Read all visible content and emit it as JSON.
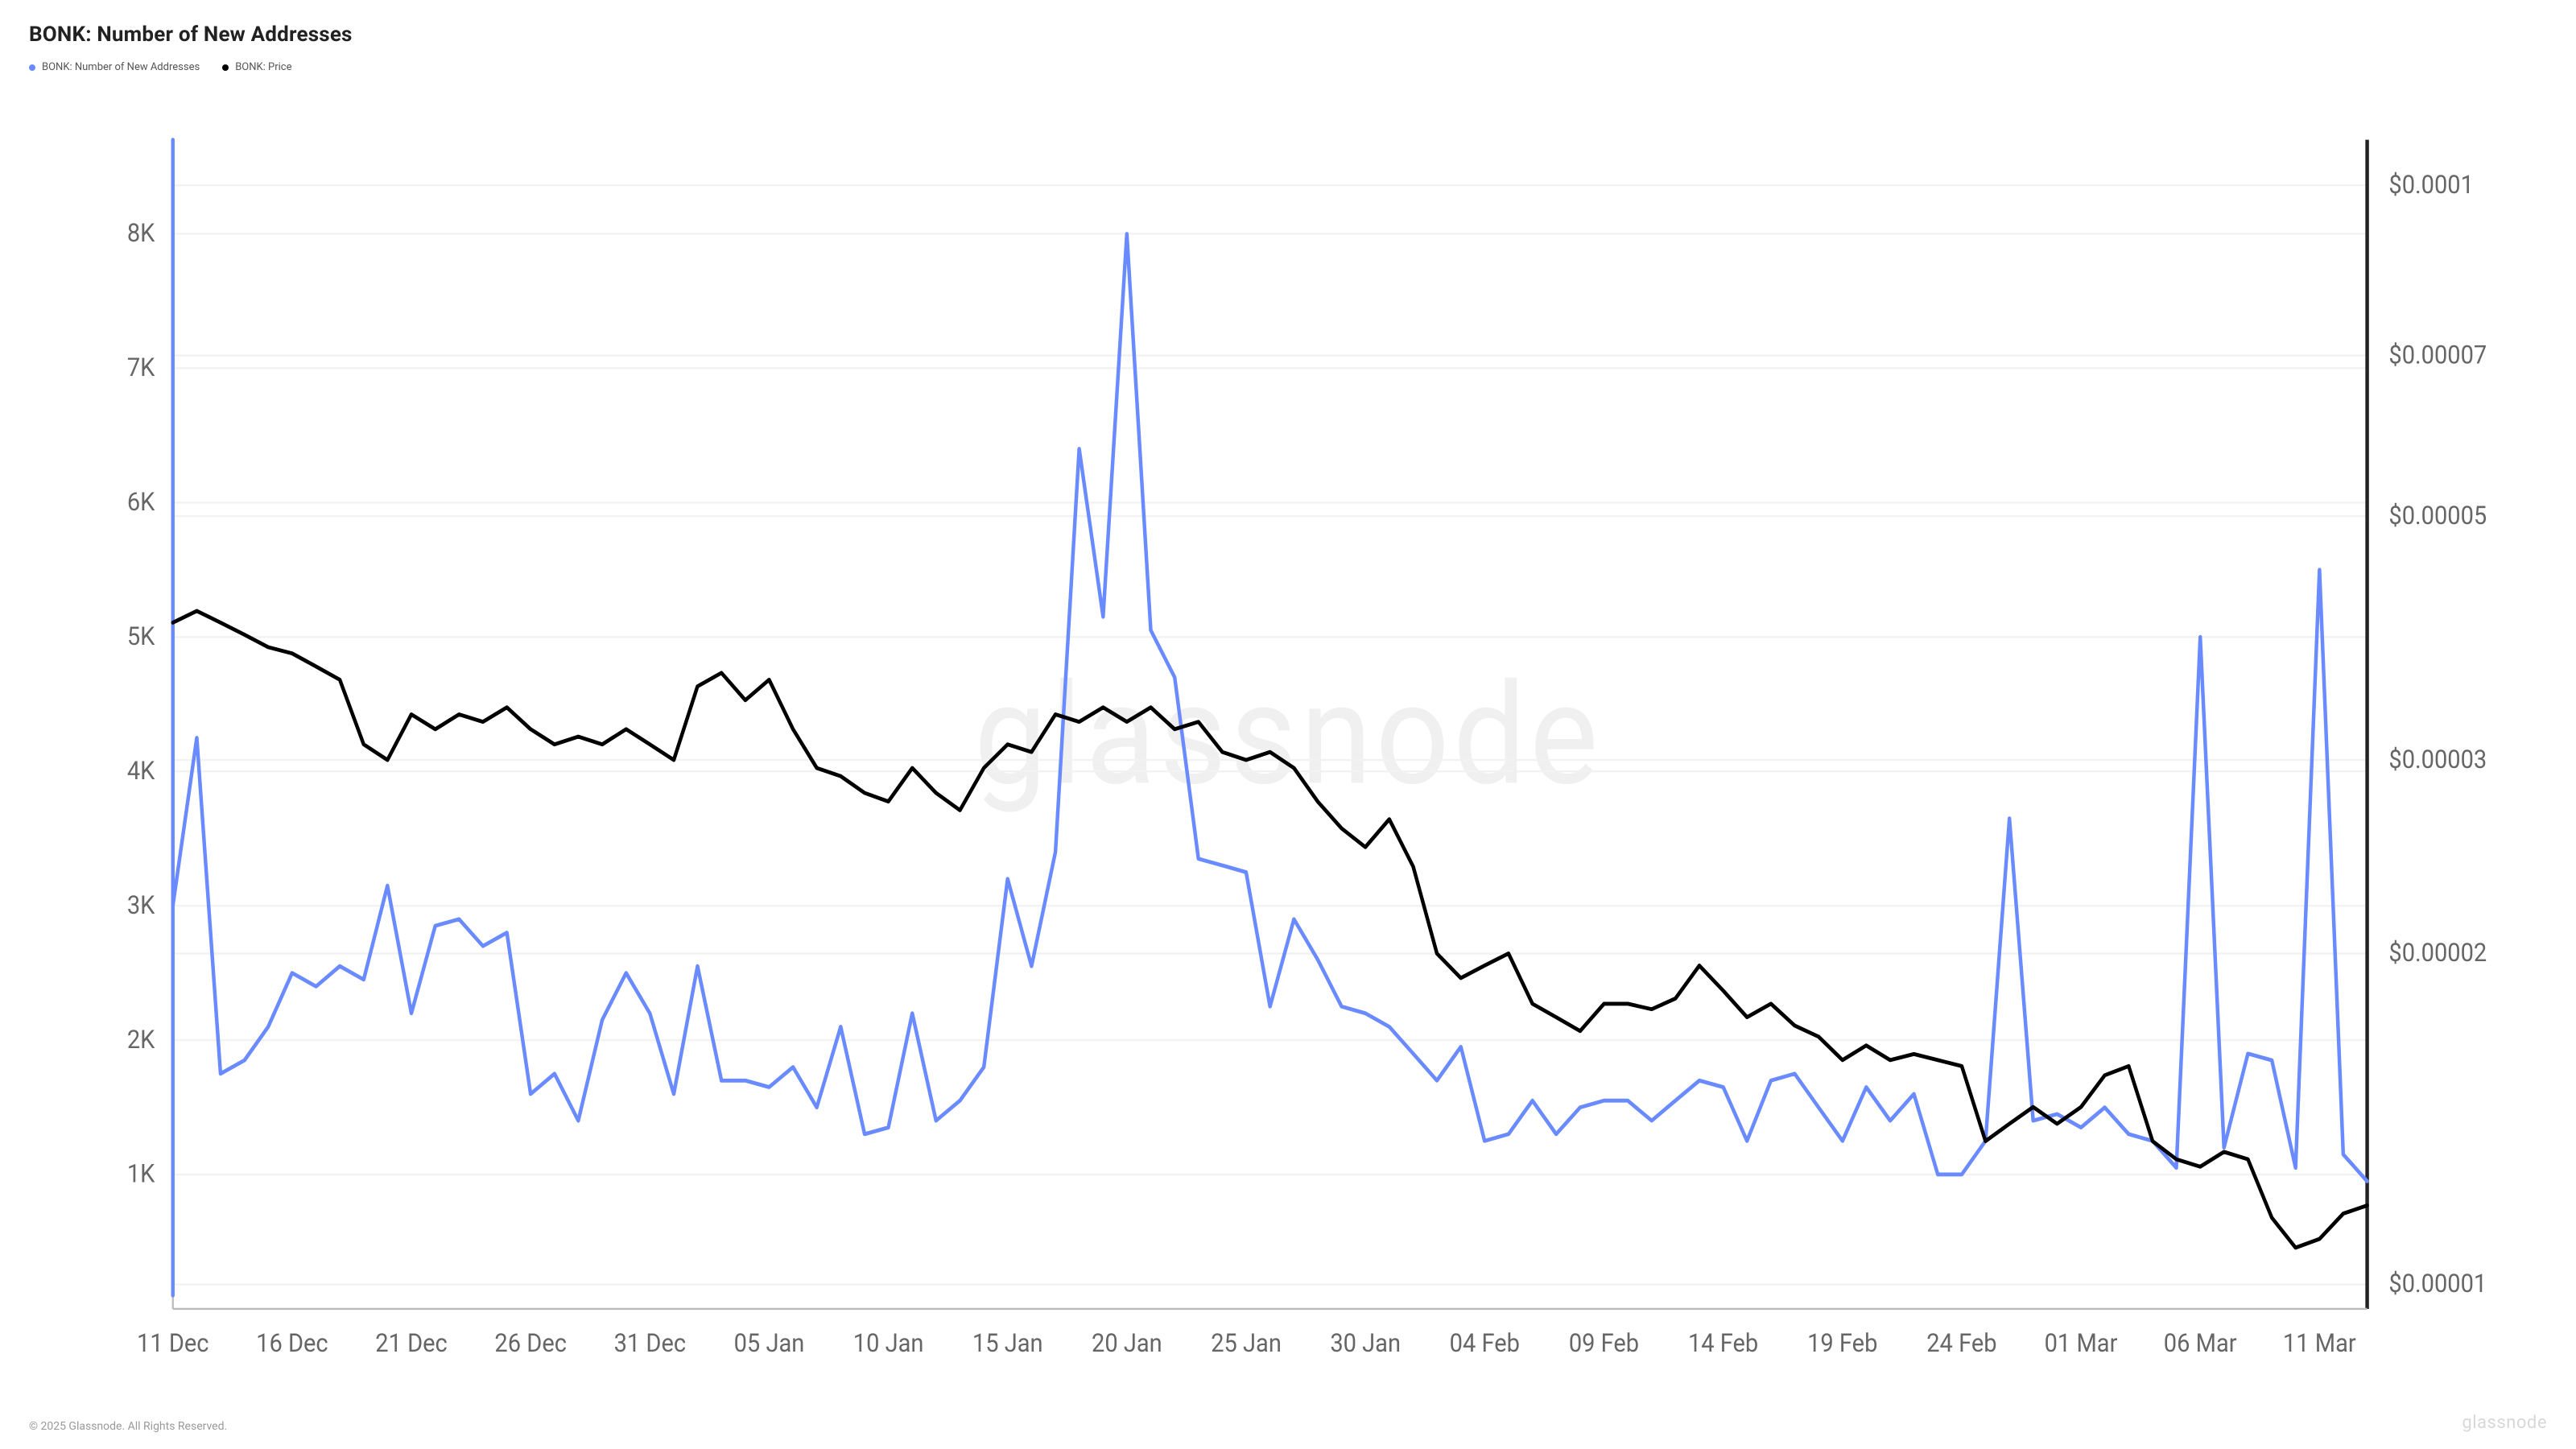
{
  "title": "BONK: Number of New Addresses",
  "legend": [
    {
      "label": "BONK: Number of New Addresses",
      "color": "#6a8bff"
    },
    {
      "label": "BONK: Price",
      "color": "#000000"
    }
  ],
  "chart": {
    "type": "line",
    "background_color": "#ffffff",
    "grid_color": "#f2f2f2",
    "axis_color": "#bbbbbb",
    "tick_font_size": 13,
    "title_font_size": 26,
    "watermark_text": "glassnode",
    "watermark_color": "#f0f0f0",
    "x": {
      "categories": [
        "11 Dec",
        "12 Dec",
        "13 Dec",
        "14 Dec",
        "15 Dec",
        "16 Dec",
        "17 Dec",
        "18 Dec",
        "19 Dec",
        "20 Dec",
        "21 Dec",
        "22 Dec",
        "23 Dec",
        "24 Dec",
        "25 Dec",
        "26 Dec",
        "27 Dec",
        "28 Dec",
        "29 Dec",
        "30 Dec",
        "31 Dec",
        "01 Jan",
        "02 Jan",
        "03 Jan",
        "04 Jan",
        "05 Jan",
        "06 Jan",
        "07 Jan",
        "08 Jan",
        "09 Jan",
        "10 Jan",
        "11 Jan",
        "12 Jan",
        "13 Jan",
        "14 Jan",
        "15 Jan",
        "16 Jan",
        "17 Jan",
        "18 Jan",
        "19 Jan",
        "20 Jan",
        "21 Jan",
        "22 Jan",
        "23 Jan",
        "24 Jan",
        "25 Jan",
        "26 Jan",
        "27 Jan",
        "28 Jan",
        "29 Jan",
        "30 Jan",
        "31 Jan",
        "01 Feb",
        "02 Feb",
        "03 Feb",
        "04 Feb",
        "05 Feb",
        "06 Feb",
        "07 Feb",
        "08 Feb",
        "09 Feb",
        "10 Feb",
        "11 Feb",
        "12 Feb",
        "13 Feb",
        "14 Feb",
        "15 Feb",
        "16 Feb",
        "17 Feb",
        "18 Feb",
        "19 Feb",
        "20 Feb",
        "21 Feb",
        "22 Feb",
        "23 Feb",
        "24 Feb",
        "25 Feb",
        "26 Feb",
        "27 Feb",
        "28 Feb",
        "01 Mar",
        "02 Mar",
        "03 Mar",
        "04 Mar",
        "05 Mar",
        "06 Mar",
        "07 Mar",
        "08 Mar",
        "09 Mar",
        "10 Mar",
        "11 Mar",
        "12 Mar",
        "13 Mar"
      ],
      "tick_labels": [
        "11 Dec",
        "16 Dec",
        "21 Dec",
        "26 Dec",
        "31 Dec",
        "05 Jan",
        "10 Jan",
        "15 Jan",
        "20 Jan",
        "25 Jan",
        "30 Jan",
        "04 Feb",
        "09 Feb",
        "14 Feb",
        "19 Feb",
        "24 Feb",
        "01 Mar",
        "06 Mar",
        "11 Mar"
      ],
      "tick_indices": [
        0,
        5,
        10,
        15,
        20,
        25,
        30,
        35,
        40,
        45,
        50,
        55,
        60,
        65,
        70,
        75,
        80,
        85,
        90
      ]
    },
    "y_left": {
      "scale": "linear",
      "min": 0,
      "max": 8700,
      "ticks": [
        1000,
        2000,
        3000,
        4000,
        5000,
        6000,
        7000,
        8000
      ],
      "tick_labels": [
        "1K",
        "2K",
        "3K",
        "4K",
        "5K",
        "6K",
        "7K",
        "8K"
      ],
      "series_color": "#6a8bff",
      "line_width": 2,
      "values": [
        3000,
        4250,
        1750,
        1850,
        2100,
        2500,
        2400,
        2550,
        2450,
        3150,
        2200,
        2850,
        2900,
        2700,
        2800,
        1600,
        1750,
        1400,
        2150,
        2500,
        2200,
        1600,
        2550,
        1700,
        1700,
        1650,
        1800,
        1500,
        2100,
        1300,
        1350,
        2200,
        1400,
        1550,
        1800,
        3200,
        2550,
        3400,
        6400,
        5150,
        8000,
        5050,
        4700,
        3350,
        3300,
        3250,
        2250,
        2900,
        2600,
        2250,
        2200,
        2100,
        1900,
        1700,
        1950,
        1250,
        1300,
        1550,
        1300,
        1500,
        1550,
        1550,
        1400,
        1550,
        1700,
        1650,
        1250,
        1700,
        1750,
        1500,
        1250,
        1650,
        1400,
        1600,
        1000,
        1000,
        1250,
        3650,
        1400,
        1450,
        1350,
        1500,
        1300,
        1250,
        1050,
        5000,
        1200,
        1900,
        1850,
        1050,
        5500,
        1150,
        950
      ]
    },
    "y_right": {
      "scale": "log",
      "min": 9.5e-06,
      "max": 0.00011,
      "ticks": [
        1e-05,
        2e-05,
        3e-05,
        5e-05,
        7e-05,
        0.0001
      ],
      "tick_labels": [
        "$0.00001",
        "$0.00002",
        "$0.00003",
        "$0.00005",
        "$0.00007",
        "$0.0001"
      ],
      "series_color": "#000000",
      "line_width": 2.2,
      "values": [
        4e-05,
        4.1e-05,
        4e-05,
        3.9e-05,
        3.8e-05,
        3.75e-05,
        3.65e-05,
        3.55e-05,
        3.1e-05,
        3e-05,
        3.3e-05,
        3.2e-05,
        3.3e-05,
        3.25e-05,
        3.35e-05,
        3.2e-05,
        3.1e-05,
        3.15e-05,
        3.1e-05,
        3.2e-05,
        3.1e-05,
        3e-05,
        3.5e-05,
        3.6e-05,
        3.4e-05,
        3.55e-05,
        3.2e-05,
        2.95e-05,
        2.9e-05,
        2.8e-05,
        2.75e-05,
        2.95e-05,
        2.8e-05,
        2.7e-05,
        2.95e-05,
        3.1e-05,
        3.05e-05,
        3.3e-05,
        3.25e-05,
        3.35e-05,
        3.25e-05,
        3.35e-05,
        3.2e-05,
        3.25e-05,
        3.05e-05,
        3e-05,
        3.05e-05,
        2.95e-05,
        2.75e-05,
        2.6e-05,
        2.5e-05,
        2.65e-05,
        2.4e-05,
        2e-05,
        1.9e-05,
        1.95e-05,
        2e-05,
        1.8e-05,
        1.75e-05,
        1.7e-05,
        1.8e-05,
        1.8e-05,
        1.78e-05,
        1.82e-05,
        1.95e-05,
        1.85e-05,
        1.75e-05,
        1.8e-05,
        1.72e-05,
        1.68e-05,
        1.6e-05,
        1.65e-05,
        1.6e-05,
        1.62e-05,
        1.6e-05,
        1.58e-05,
        1.35e-05,
        1.4e-05,
        1.45e-05,
        1.4e-05,
        1.45e-05,
        1.55e-05,
        1.58e-05,
        1.35e-05,
        1.3e-05,
        1.28e-05,
        1.32e-05,
        1.3e-05,
        1.15e-05,
        1.08e-05,
        1.1e-05,
        1.16e-05,
        1.18e-05
      ]
    }
  },
  "footer": {
    "copyright": "© 2025 Glassnode. All Rights Reserved.",
    "brand": "glassnode"
  }
}
